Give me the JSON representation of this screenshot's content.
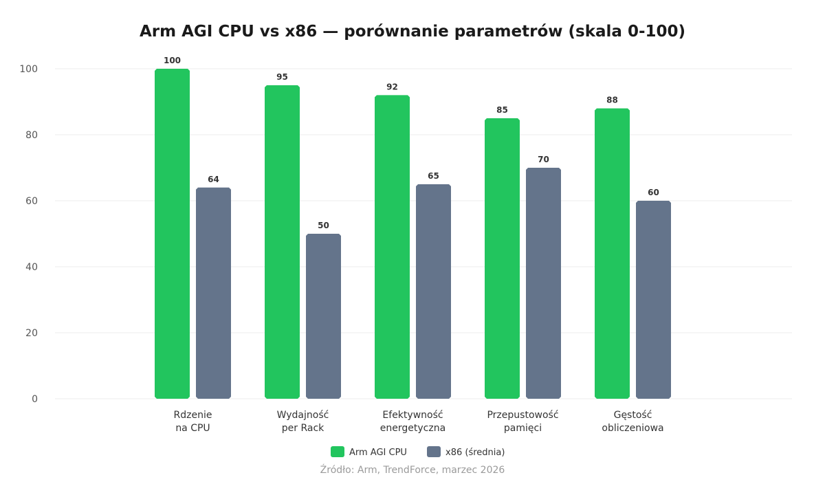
{
  "chart_data": {
    "type": "bar",
    "title": "Arm AGI CPU vs x86 — porównanie parametrów (skala 0-100)",
    "categories": [
      [
        "Rdzenie",
        "na CPU"
      ],
      [
        "Wydajność",
        "per Rack"
      ],
      [
        "Efektywność",
        "energetyczna"
      ],
      [
        "Przepustowość",
        "pamięci"
      ],
      [
        "Gęstość",
        "obliczeniowa"
      ]
    ],
    "series": [
      {
        "name": "Arm AGI CPU",
        "color": "#22c55e",
        "values": [
          100,
          95,
          92,
          85,
          88
        ]
      },
      {
        "name": "x86 (średnia)",
        "color": "#64748b",
        "values": [
          64,
          50,
          65,
          70,
          60
        ]
      }
    ],
    "ylim": [
      0,
      100
    ],
    "yticks": [
      0,
      20,
      40,
      60,
      80,
      100
    ],
    "grid": true,
    "legend": "bottom-center",
    "source": "Źródło: Arm, TrendForce, marzec 2026"
  }
}
